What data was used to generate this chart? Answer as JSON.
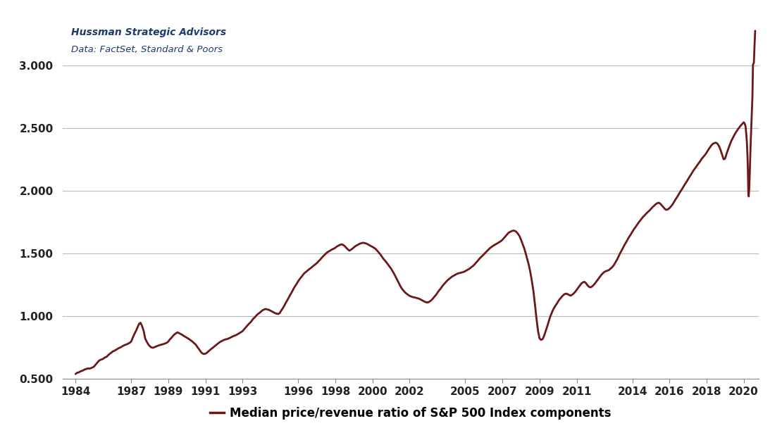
{
  "title_line1": "Hussman Strategic Advisors",
  "title_line2": "Data: FactSet, Standard & Poors",
  "xlabel": "Median price/revenue ratio of S&P 500 Index components",
  "line_color": "#6B1818",
  "background_color": "#FFFFFF",
  "ylim": [
    0.5,
    3.35
  ],
  "yticks": [
    0.5,
    1.0,
    1.5,
    2.0,
    2.5,
    3.0
  ],
  "ytick_labels": [
    "0.500",
    "1.000",
    "1.500",
    "2.000",
    "2.500",
    "3.000"
  ],
  "xtick_years": [
    1984,
    1987,
    1989,
    1991,
    1993,
    1996,
    1998,
    2000,
    2002,
    2005,
    2007,
    2009,
    2011,
    2014,
    2016,
    2018,
    2020
  ],
  "xlim": [
    1983.3,
    2020.8
  ],
  "data": [
    [
      1984.0,
      0.535
    ],
    [
      1984.08,
      0.545
    ],
    [
      1984.17,
      0.548
    ],
    [
      1984.25,
      0.555
    ],
    [
      1984.33,
      0.56
    ],
    [
      1984.42,
      0.565
    ],
    [
      1984.5,
      0.572
    ],
    [
      1984.58,
      0.575
    ],
    [
      1984.67,
      0.58
    ],
    [
      1984.75,
      0.578
    ],
    [
      1984.83,
      0.582
    ],
    [
      1984.92,
      0.588
    ],
    [
      1985.0,
      0.595
    ],
    [
      1985.08,
      0.61
    ],
    [
      1985.17,
      0.625
    ],
    [
      1985.25,
      0.64
    ],
    [
      1985.33,
      0.648
    ],
    [
      1985.42,
      0.652
    ],
    [
      1985.5,
      0.658
    ],
    [
      1985.58,
      0.668
    ],
    [
      1985.67,
      0.672
    ],
    [
      1985.75,
      0.685
    ],
    [
      1985.83,
      0.695
    ],
    [
      1985.92,
      0.705
    ],
    [
      1986.0,
      0.715
    ],
    [
      1986.08,
      0.72
    ],
    [
      1986.17,
      0.728
    ],
    [
      1986.25,
      0.735
    ],
    [
      1986.33,
      0.742
    ],
    [
      1986.42,
      0.748
    ],
    [
      1986.5,
      0.755
    ],
    [
      1986.58,
      0.762
    ],
    [
      1986.67,
      0.768
    ],
    [
      1986.75,
      0.772
    ],
    [
      1986.83,
      0.778
    ],
    [
      1986.92,
      0.785
    ],
    [
      1987.0,
      0.795
    ],
    [
      1987.08,
      0.825
    ],
    [
      1987.17,
      0.855
    ],
    [
      1987.25,
      0.878
    ],
    [
      1987.33,
      0.905
    ],
    [
      1987.42,
      0.935
    ],
    [
      1987.5,
      0.945
    ],
    [
      1987.58,
      0.92
    ],
    [
      1987.67,
      0.88
    ],
    [
      1987.75,
      0.82
    ],
    [
      1987.83,
      0.795
    ],
    [
      1987.92,
      0.772
    ],
    [
      1988.0,
      0.758
    ],
    [
      1988.08,
      0.748
    ],
    [
      1988.17,
      0.745
    ],
    [
      1988.25,
      0.75
    ],
    [
      1988.33,
      0.755
    ],
    [
      1988.42,
      0.76
    ],
    [
      1988.5,
      0.765
    ],
    [
      1988.58,
      0.768
    ],
    [
      1988.67,
      0.772
    ],
    [
      1988.75,
      0.775
    ],
    [
      1988.83,
      0.78
    ],
    [
      1988.92,
      0.785
    ],
    [
      1989.0,
      0.795
    ],
    [
      1989.08,
      0.812
    ],
    [
      1989.17,
      0.825
    ],
    [
      1989.25,
      0.84
    ],
    [
      1989.33,
      0.852
    ],
    [
      1989.42,
      0.862
    ],
    [
      1989.5,
      0.868
    ],
    [
      1989.58,
      0.862
    ],
    [
      1989.67,
      0.855
    ],
    [
      1989.75,
      0.848
    ],
    [
      1989.83,
      0.84
    ],
    [
      1989.92,
      0.832
    ],
    [
      1990.0,
      0.825
    ],
    [
      1990.08,
      0.818
    ],
    [
      1990.17,
      0.808
    ],
    [
      1990.25,
      0.8
    ],
    [
      1990.33,
      0.79
    ],
    [
      1990.42,
      0.778
    ],
    [
      1990.5,
      0.765
    ],
    [
      1990.58,
      0.748
    ],
    [
      1990.67,
      0.73
    ],
    [
      1990.75,
      0.712
    ],
    [
      1990.83,
      0.7
    ],
    [
      1990.92,
      0.695
    ],
    [
      1991.0,
      0.698
    ],
    [
      1991.08,
      0.705
    ],
    [
      1991.17,
      0.718
    ],
    [
      1991.25,
      0.728
    ],
    [
      1991.33,
      0.738
    ],
    [
      1991.42,
      0.748
    ],
    [
      1991.5,
      0.758
    ],
    [
      1991.58,
      0.768
    ],
    [
      1991.67,
      0.778
    ],
    [
      1991.75,
      0.788
    ],
    [
      1991.83,
      0.795
    ],
    [
      1991.92,
      0.802
    ],
    [
      1992.0,
      0.808
    ],
    [
      1992.08,
      0.812
    ],
    [
      1992.17,
      0.815
    ],
    [
      1992.25,
      0.82
    ],
    [
      1992.33,
      0.825
    ],
    [
      1992.42,
      0.832
    ],
    [
      1992.5,
      0.838
    ],
    [
      1992.58,
      0.842
    ],
    [
      1992.67,
      0.848
    ],
    [
      1992.75,
      0.855
    ],
    [
      1992.83,
      0.862
    ],
    [
      1992.92,
      0.87
    ],
    [
      1993.0,
      0.878
    ],
    [
      1993.08,
      0.892
    ],
    [
      1993.17,
      0.908
    ],
    [
      1993.25,
      0.922
    ],
    [
      1993.33,
      0.935
    ],
    [
      1993.42,
      0.948
    ],
    [
      1993.5,
      0.962
    ],
    [
      1993.58,
      0.978
    ],
    [
      1993.67,
      0.99
    ],
    [
      1993.75,
      1.005
    ],
    [
      1993.83,
      1.015
    ],
    [
      1993.92,
      1.025
    ],
    [
      1994.0,
      1.035
    ],
    [
      1994.08,
      1.045
    ],
    [
      1994.17,
      1.052
    ],
    [
      1994.25,
      1.055
    ],
    [
      1994.33,
      1.052
    ],
    [
      1994.42,
      1.048
    ],
    [
      1994.5,
      1.042
    ],
    [
      1994.58,
      1.035
    ],
    [
      1994.67,
      1.028
    ],
    [
      1994.75,
      1.022
    ],
    [
      1994.83,
      1.018
    ],
    [
      1994.92,
      1.015
    ],
    [
      1995.0,
      1.022
    ],
    [
      1995.08,
      1.042
    ],
    [
      1995.17,
      1.062
    ],
    [
      1995.25,
      1.082
    ],
    [
      1995.33,
      1.105
    ],
    [
      1995.42,
      1.128
    ],
    [
      1995.5,
      1.15
    ],
    [
      1995.58,
      1.172
    ],
    [
      1995.67,
      1.195
    ],
    [
      1995.75,
      1.218
    ],
    [
      1995.83,
      1.238
    ],
    [
      1995.92,
      1.258
    ],
    [
      1996.0,
      1.278
    ],
    [
      1996.08,
      1.295
    ],
    [
      1996.17,
      1.312
    ],
    [
      1996.25,
      1.328
    ],
    [
      1996.33,
      1.342
    ],
    [
      1996.42,
      1.352
    ],
    [
      1996.5,
      1.362
    ],
    [
      1996.58,
      1.372
    ],
    [
      1996.67,
      1.382
    ],
    [
      1996.75,
      1.392
    ],
    [
      1996.83,
      1.402
    ],
    [
      1996.92,
      1.412
    ],
    [
      1997.0,
      1.422
    ],
    [
      1997.08,
      1.435
    ],
    [
      1997.17,
      1.448
    ],
    [
      1997.25,
      1.462
    ],
    [
      1997.33,
      1.475
    ],
    [
      1997.42,
      1.488
    ],
    [
      1997.5,
      1.5
    ],
    [
      1997.58,
      1.51
    ],
    [
      1997.67,
      1.518
    ],
    [
      1997.75,
      1.525
    ],
    [
      1997.83,
      1.532
    ],
    [
      1997.92,
      1.538
    ],
    [
      1998.0,
      1.545
    ],
    [
      1998.08,
      1.555
    ],
    [
      1998.17,
      1.562
    ],
    [
      1998.25,
      1.568
    ],
    [
      1998.33,
      1.572
    ],
    [
      1998.42,
      1.568
    ],
    [
      1998.5,
      1.558
    ],
    [
      1998.58,
      1.545
    ],
    [
      1998.67,
      1.532
    ],
    [
      1998.75,
      1.522
    ],
    [
      1998.83,
      1.528
    ],
    [
      1998.92,
      1.538
    ],
    [
      1999.0,
      1.548
    ],
    [
      1999.08,
      1.558
    ],
    [
      1999.17,
      1.565
    ],
    [
      1999.25,
      1.572
    ],
    [
      1999.33,
      1.578
    ],
    [
      1999.42,
      1.582
    ],
    [
      1999.5,
      1.585
    ],
    [
      1999.58,
      1.582
    ],
    [
      1999.67,
      1.578
    ],
    [
      1999.75,
      1.572
    ],
    [
      1999.83,
      1.565
    ],
    [
      1999.92,
      1.558
    ],
    [
      2000.0,
      1.552
    ],
    [
      2000.08,
      1.545
    ],
    [
      2000.17,
      1.535
    ],
    [
      2000.25,
      1.522
    ],
    [
      2000.33,
      1.508
    ],
    [
      2000.42,
      1.492
    ],
    [
      2000.5,
      1.475
    ],
    [
      2000.58,
      1.458
    ],
    [
      2000.67,
      1.442
    ],
    [
      2000.75,
      1.428
    ],
    [
      2000.83,
      1.412
    ],
    [
      2000.92,
      1.395
    ],
    [
      2001.0,
      1.378
    ],
    [
      2001.08,
      1.358
    ],
    [
      2001.17,
      1.335
    ],
    [
      2001.25,
      1.312
    ],
    [
      2001.33,
      1.288
    ],
    [
      2001.42,
      1.262
    ],
    [
      2001.5,
      1.238
    ],
    [
      2001.58,
      1.218
    ],
    [
      2001.67,
      1.202
    ],
    [
      2001.75,
      1.188
    ],
    [
      2001.83,
      1.178
    ],
    [
      2001.92,
      1.168
    ],
    [
      2002.0,
      1.16
    ],
    [
      2002.08,
      1.155
    ],
    [
      2002.17,
      1.15
    ],
    [
      2002.25,
      1.148
    ],
    [
      2002.33,
      1.145
    ],
    [
      2002.42,
      1.142
    ],
    [
      2002.5,
      1.138
    ],
    [
      2002.58,
      1.132
    ],
    [
      2002.67,
      1.125
    ],
    [
      2002.75,
      1.118
    ],
    [
      2002.83,
      1.112
    ],
    [
      2002.92,
      1.108
    ],
    [
      2003.0,
      1.108
    ],
    [
      2003.08,
      1.115
    ],
    [
      2003.17,
      1.125
    ],
    [
      2003.25,
      1.138
    ],
    [
      2003.33,
      1.152
    ],
    [
      2003.42,
      1.168
    ],
    [
      2003.5,
      1.185
    ],
    [
      2003.58,
      1.202
    ],
    [
      2003.67,
      1.218
    ],
    [
      2003.75,
      1.235
    ],
    [
      2003.83,
      1.25
    ],
    [
      2003.92,
      1.265
    ],
    [
      2004.0,
      1.278
    ],
    [
      2004.08,
      1.29
    ],
    [
      2004.17,
      1.3
    ],
    [
      2004.25,
      1.31
    ],
    [
      2004.33,
      1.318
    ],
    [
      2004.42,
      1.325
    ],
    [
      2004.5,
      1.332
    ],
    [
      2004.58,
      1.338
    ],
    [
      2004.67,
      1.342
    ],
    [
      2004.75,
      1.345
    ],
    [
      2004.83,
      1.348
    ],
    [
      2004.92,
      1.352
    ],
    [
      2005.0,
      1.358
    ],
    [
      2005.08,
      1.365
    ],
    [
      2005.17,
      1.372
    ],
    [
      2005.25,
      1.38
    ],
    [
      2005.33,
      1.39
    ],
    [
      2005.42,
      1.4
    ],
    [
      2005.5,
      1.412
    ],
    [
      2005.58,
      1.425
    ],
    [
      2005.67,
      1.44
    ],
    [
      2005.75,
      1.455
    ],
    [
      2005.83,
      1.468
    ],
    [
      2005.92,
      1.48
    ],
    [
      2006.0,
      1.492
    ],
    [
      2006.08,
      1.505
    ],
    [
      2006.17,
      1.518
    ],
    [
      2006.25,
      1.53
    ],
    [
      2006.33,
      1.542
    ],
    [
      2006.42,
      1.552
    ],
    [
      2006.5,
      1.56
    ],
    [
      2006.58,
      1.568
    ],
    [
      2006.67,
      1.575
    ],
    [
      2006.75,
      1.582
    ],
    [
      2006.83,
      1.59
    ],
    [
      2006.92,
      1.598
    ],
    [
      2007.0,
      1.608
    ],
    [
      2007.08,
      1.622
    ],
    [
      2007.17,
      1.638
    ],
    [
      2007.25,
      1.652
    ],
    [
      2007.33,
      1.665
    ],
    [
      2007.42,
      1.672
    ],
    [
      2007.5,
      1.678
    ],
    [
      2007.58,
      1.682
    ],
    [
      2007.67,
      1.68
    ],
    [
      2007.75,
      1.672
    ],
    [
      2007.83,
      1.658
    ],
    [
      2007.92,
      1.638
    ],
    [
      2008.0,
      1.61
    ],
    [
      2008.08,
      1.578
    ],
    [
      2008.17,
      1.542
    ],
    [
      2008.25,
      1.502
    ],
    [
      2008.33,
      1.458
    ],
    [
      2008.42,
      1.408
    ],
    [
      2008.5,
      1.352
    ],
    [
      2008.58,
      1.285
    ],
    [
      2008.67,
      1.198
    ],
    [
      2008.75,
      1.095
    ],
    [
      2008.83,
      0.985
    ],
    [
      2008.92,
      0.878
    ],
    [
      2009.0,
      0.82
    ],
    [
      2009.08,
      0.808
    ],
    [
      2009.17,
      0.815
    ],
    [
      2009.25,
      0.842
    ],
    [
      2009.33,
      0.878
    ],
    [
      2009.42,
      0.918
    ],
    [
      2009.5,
      0.958
    ],
    [
      2009.58,
      0.995
    ],
    [
      2009.67,
      1.028
    ],
    [
      2009.75,
      1.055
    ],
    [
      2009.83,
      1.075
    ],
    [
      2009.92,
      1.095
    ],
    [
      2010.0,
      1.115
    ],
    [
      2010.08,
      1.132
    ],
    [
      2010.17,
      1.148
    ],
    [
      2010.25,
      1.162
    ],
    [
      2010.33,
      1.172
    ],
    [
      2010.42,
      1.178
    ],
    [
      2010.5,
      1.175
    ],
    [
      2010.58,
      1.168
    ],
    [
      2010.67,
      1.162
    ],
    [
      2010.75,
      1.168
    ],
    [
      2010.83,
      1.178
    ],
    [
      2010.92,
      1.192
    ],
    [
      2011.0,
      1.208
    ],
    [
      2011.08,
      1.225
    ],
    [
      2011.17,
      1.242
    ],
    [
      2011.25,
      1.258
    ],
    [
      2011.33,
      1.268
    ],
    [
      2011.42,
      1.272
    ],
    [
      2011.5,
      1.262
    ],
    [
      2011.58,
      1.245
    ],
    [
      2011.67,
      1.232
    ],
    [
      2011.75,
      1.228
    ],
    [
      2011.83,
      1.235
    ],
    [
      2011.92,
      1.248
    ],
    [
      2012.0,
      1.262
    ],
    [
      2012.08,
      1.278
    ],
    [
      2012.17,
      1.295
    ],
    [
      2012.25,
      1.312
    ],
    [
      2012.33,
      1.328
    ],
    [
      2012.42,
      1.342
    ],
    [
      2012.5,
      1.352
    ],
    [
      2012.58,
      1.358
    ],
    [
      2012.67,
      1.362
    ],
    [
      2012.75,
      1.368
    ],
    [
      2012.83,
      1.378
    ],
    [
      2012.92,
      1.39
    ],
    [
      2013.0,
      1.405
    ],
    [
      2013.08,
      1.425
    ],
    [
      2013.17,
      1.448
    ],
    [
      2013.25,
      1.472
    ],
    [
      2013.33,
      1.498
    ],
    [
      2013.42,
      1.522
    ],
    [
      2013.5,
      1.545
    ],
    [
      2013.58,
      1.568
    ],
    [
      2013.67,
      1.59
    ],
    [
      2013.75,
      1.612
    ],
    [
      2013.83,
      1.632
    ],
    [
      2013.92,
      1.652
    ],
    [
      2014.0,
      1.672
    ],
    [
      2014.08,
      1.692
    ],
    [
      2014.17,
      1.71
    ],
    [
      2014.25,
      1.728
    ],
    [
      2014.33,
      1.745
    ],
    [
      2014.42,
      1.762
    ],
    [
      2014.5,
      1.778
    ],
    [
      2014.58,
      1.792
    ],
    [
      2014.67,
      1.805
    ],
    [
      2014.75,
      1.818
    ],
    [
      2014.83,
      1.83
    ],
    [
      2014.92,
      1.842
    ],
    [
      2015.0,
      1.855
    ],
    [
      2015.08,
      1.868
    ],
    [
      2015.17,
      1.88
    ],
    [
      2015.25,
      1.892
    ],
    [
      2015.33,
      1.9
    ],
    [
      2015.42,
      1.905
    ],
    [
      2015.5,
      1.898
    ],
    [
      2015.58,
      1.885
    ],
    [
      2015.67,
      1.87
    ],
    [
      2015.75,
      1.855
    ],
    [
      2015.83,
      1.848
    ],
    [
      2015.92,
      1.852
    ],
    [
      2016.0,
      1.862
    ],
    [
      2016.08,
      1.875
    ],
    [
      2016.17,
      1.892
    ],
    [
      2016.25,
      1.912
    ],
    [
      2016.33,
      1.932
    ],
    [
      2016.42,
      1.952
    ],
    [
      2016.5,
      1.972
    ],
    [
      2016.58,
      1.992
    ],
    [
      2016.67,
      2.012
    ],
    [
      2016.75,
      2.032
    ],
    [
      2016.83,
      2.052
    ],
    [
      2016.92,
      2.072
    ],
    [
      2017.0,
      2.092
    ],
    [
      2017.08,
      2.112
    ],
    [
      2017.17,
      2.132
    ],
    [
      2017.25,
      2.152
    ],
    [
      2017.33,
      2.17
    ],
    [
      2017.42,
      2.188
    ],
    [
      2017.5,
      2.205
    ],
    [
      2017.58,
      2.222
    ],
    [
      2017.67,
      2.24
    ],
    [
      2017.75,
      2.258
    ],
    [
      2017.83,
      2.272
    ],
    [
      2017.92,
      2.288
    ],
    [
      2018.0,
      2.305
    ],
    [
      2018.08,
      2.325
    ],
    [
      2018.17,
      2.345
    ],
    [
      2018.25,
      2.362
    ],
    [
      2018.33,
      2.375
    ],
    [
      2018.42,
      2.382
    ],
    [
      2018.5,
      2.385
    ],
    [
      2018.58,
      2.378
    ],
    [
      2018.67,
      2.358
    ],
    [
      2018.75,
      2.328
    ],
    [
      2018.83,
      2.292
    ],
    [
      2018.92,
      2.252
    ],
    [
      2019.0,
      2.258
    ],
    [
      2019.08,
      2.298
    ],
    [
      2019.17,
      2.335
    ],
    [
      2019.25,
      2.368
    ],
    [
      2019.33,
      2.398
    ],
    [
      2019.42,
      2.425
    ],
    [
      2019.5,
      2.448
    ],
    [
      2019.58,
      2.468
    ],
    [
      2019.67,
      2.488
    ],
    [
      2019.75,
      2.505
    ],
    [
      2019.83,
      2.52
    ],
    [
      2019.92,
      2.535
    ],
    [
      2020.0,
      2.548
    ],
    [
      2020.05,
      2.54
    ],
    [
      2020.1,
      2.515
    ],
    [
      2020.13,
      2.468
    ],
    [
      2020.17,
      2.395
    ],
    [
      2020.2,
      2.295
    ],
    [
      2020.23,
      2.148
    ],
    [
      2020.25,
      1.985
    ],
    [
      2020.27,
      1.955
    ],
    [
      2020.3,
      2.025
    ],
    [
      2020.33,
      2.155
    ],
    [
      2020.38,
      2.398
    ],
    [
      2020.42,
      2.548
    ],
    [
      2020.47,
      2.748
    ],
    [
      2020.5,
      3.008
    ],
    [
      2020.55,
      3.025
    ],
    [
      2020.58,
      3.15
    ],
    [
      2020.62,
      3.28
    ]
  ]
}
